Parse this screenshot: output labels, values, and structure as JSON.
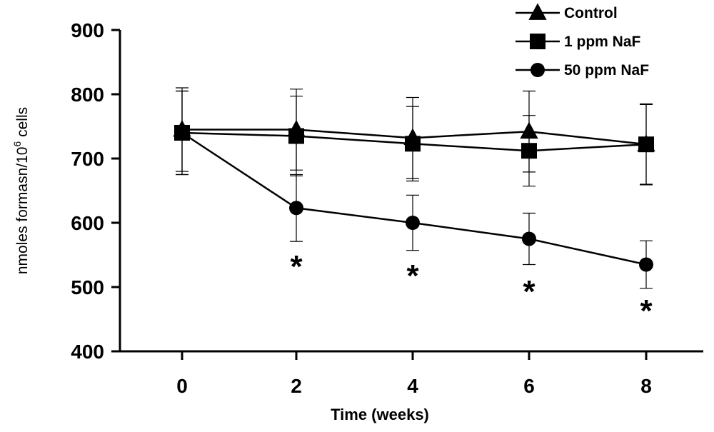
{
  "chart_data": {
    "type": "line",
    "title": "",
    "xlabel": "Time (weeks)",
    "ylabel": "nmoles formasn/10",
    "ylabel_superscript": "6",
    "ylabel_suffix": " cells",
    "x": [
      0,
      2,
      4,
      6,
      8
    ],
    "x_tick_labels": [
      "0",
      "2",
      "4",
      "6",
      "8"
    ],
    "ylim": [
      400,
      900
    ],
    "y_ticks": [
      400,
      500,
      600,
      700,
      800,
      900
    ],
    "y_tick_labels": [
      "400",
      "500",
      "600",
      "700",
      "800",
      "900"
    ],
    "legend_position": "top-right",
    "series": [
      {
        "name": "Control",
        "marker": "triangle",
        "values": [
          745,
          745,
          732,
          742,
          722
        ],
        "error": [
          65,
          63,
          63,
          63,
          63
        ]
      },
      {
        "name": "1 ppm NaF",
        "marker": "square",
        "values": [
          740,
          735,
          723,
          712,
          722
        ],
        "error": [
          65,
          62,
          58,
          55,
          62
        ]
      },
      {
        "name": "50 ppm NaF",
        "marker": "circle",
        "values": [
          740,
          623,
          600,
          575,
          535
        ],
        "error": [
          65,
          52,
          43,
          40,
          37
        ]
      }
    ],
    "significance": [
      {
        "x": 2,
        "label": "*"
      },
      {
        "x": 4,
        "label": "*"
      },
      {
        "x": 6,
        "label": "*"
      },
      {
        "x": 8,
        "label": "*"
      }
    ]
  }
}
